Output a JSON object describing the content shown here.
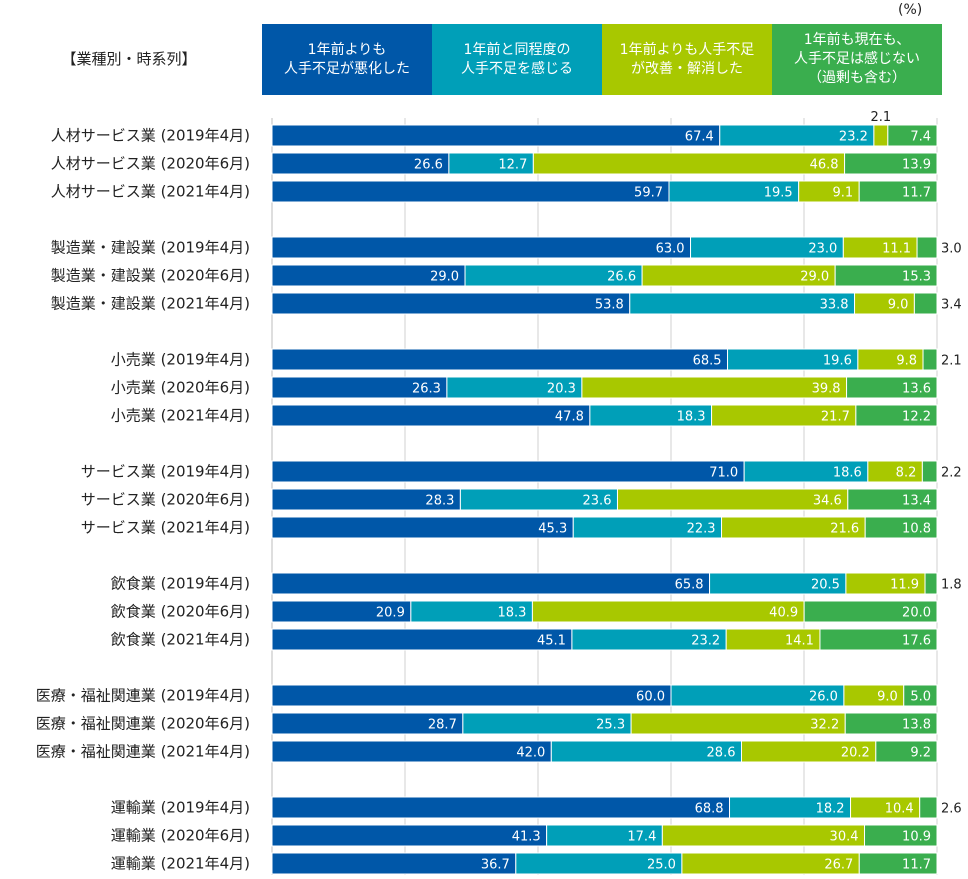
{
  "chart_data": {
    "type": "bar",
    "orientation": "horizontal",
    "stacked": true,
    "unit": "(%)",
    "title": "【業種別・時系列】",
    "xlim": [
      0,
      100
    ],
    "grid": true,
    "legend_position": "top",
    "series": [
      {
        "name": "1年前よりも\n人手不足が悪化した",
        "color": "#0057A8",
        "label_color": "#ffffff"
      },
      {
        "name": "1年前と同程度の\n人手不足を感じる",
        "color": "#009FB8",
        "label_color": "#ffffff"
      },
      {
        "name": "1年前よりも人手不足\nが改善・解消した",
        "color": "#A8C800",
        "label_color": "#ffffff"
      },
      {
        "name": "1年前も現在も、\n人手不足は感じない\n（過剰も含む）",
        "color": "#3AAE4E",
        "label_color": "#ffffff"
      }
    ],
    "groups": [
      {
        "rows": [
          {
            "label": "人材サービス業 (2019年4月)",
            "values": [
              67.4,
              23.2,
              2.1,
              7.4
            ]
          },
          {
            "label": "人材サービス業 (2020年6月)",
            "values": [
              26.6,
              12.7,
              46.8,
              13.9
            ]
          },
          {
            "label": "人材サービス業 (2021年4月)",
            "values": [
              59.7,
              19.5,
              9.1,
              11.7
            ]
          }
        ]
      },
      {
        "rows": [
          {
            "label": "製造業・建設業 (2019年4月)",
            "values": [
              63.0,
              23.0,
              11.1,
              3.0
            ]
          },
          {
            "label": "製造業・建設業 (2020年6月)",
            "values": [
              29.0,
              26.6,
              29.0,
              15.3
            ]
          },
          {
            "label": "製造業・建設業 (2021年4月)",
            "values": [
              53.8,
              33.8,
              9.0,
              3.4
            ]
          }
        ]
      },
      {
        "rows": [
          {
            "label": "小売業 (2019年4月)",
            "values": [
              68.5,
              19.6,
              9.8,
              2.1
            ]
          },
          {
            "label": "小売業 (2020年6月)",
            "values": [
              26.3,
              20.3,
              39.8,
              13.6
            ]
          },
          {
            "label": "小売業 (2021年4月)",
            "values": [
              47.8,
              18.3,
              21.7,
              12.2
            ]
          }
        ]
      },
      {
        "rows": [
          {
            "label": "サービス業 (2019年4月)",
            "values": [
              71.0,
              18.6,
              8.2,
              2.2
            ]
          },
          {
            "label": "サービス業 (2020年6月)",
            "values": [
              28.3,
              23.6,
              34.6,
              13.4
            ]
          },
          {
            "label": "サービス業 (2021年4月)",
            "values": [
              45.3,
              22.3,
              21.6,
              10.8
            ]
          }
        ]
      },
      {
        "rows": [
          {
            "label": "飲食業 (2019年4月)",
            "values": [
              65.8,
              20.5,
              11.9,
              1.8
            ]
          },
          {
            "label": "飲食業 (2020年6月)",
            "values": [
              20.9,
              18.3,
              40.9,
              20.0
            ]
          },
          {
            "label": "飲食業 (2021年4月)",
            "values": [
              45.1,
              23.2,
              14.1,
              17.6
            ]
          }
        ]
      },
      {
        "rows": [
          {
            "label": "医療・福祉関連業 (2019年4月)",
            "values": [
              60.0,
              26.0,
              9.0,
              5.0
            ]
          },
          {
            "label": "医療・福祉関連業 (2020年6月)",
            "values": [
              28.7,
              25.3,
              32.2,
              13.8
            ]
          },
          {
            "label": "医療・福祉関連業 (2021年4月)",
            "values": [
              42.0,
              28.6,
              20.2,
              9.2
            ]
          }
        ]
      },
      {
        "rows": [
          {
            "label": "運輸業 (2019年4月)",
            "values": [
              68.8,
              18.2,
              10.4,
              2.6
            ]
          },
          {
            "label": "運輸業 (2020年6月)",
            "values": [
              41.3,
              17.4,
              30.4,
              10.9
            ]
          },
          {
            "label": "運輸業 (2021年4月)",
            "values": [
              36.7,
              25.0,
              26.7,
              11.7
            ]
          }
        ]
      }
    ]
  }
}
